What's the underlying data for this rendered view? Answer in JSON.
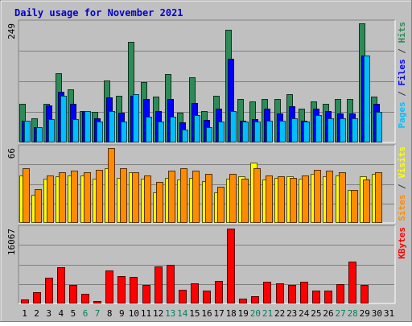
{
  "chart_data": {
    "type": "bar",
    "title": "Daily usage for November 2021",
    "x": [
      "1",
      "2",
      "3",
      "4",
      "5",
      "6",
      "7",
      "8",
      "9",
      "10",
      "11",
      "12",
      "13",
      "14",
      "15",
      "16",
      "17",
      "18",
      "19",
      "20",
      "21",
      "22",
      "23",
      "24",
      "25",
      "26",
      "27",
      "28",
      "29",
      "30",
      "31"
    ],
    "weekend_days": [
      "6",
      "7",
      "13",
      "14",
      "20",
      "21",
      "27",
      "28"
    ],
    "no_data_days": [
      "31"
    ],
    "panels": [
      {
        "id": "hits-files-pages",
        "ymax_label": "249",
        "ymax": 249,
        "side_labels": [
          {
            "text": "Pages",
            "color": "#00bfff"
          },
          {
            "text": " / ",
            "color": "#333333"
          },
          {
            "text": "Files",
            "color": "#0000ff"
          },
          {
            "text": " / ",
            "color": "#333333"
          },
          {
            "text": "Hits",
            "color": "#2e8b57"
          }
        ],
        "series": [
          {
            "name": "Hits",
            "color": "#2e8b57",
            "values": [
              81,
              51,
              81,
              145,
              111,
              66,
              64,
              130,
              98,
              211,
              126,
              96,
              143,
              62,
              137,
              66,
              98,
              235,
              91,
              86,
              91,
              91,
              101,
              71,
              86,
              81,
              91,
              91,
              249,
              96,
              0
            ]
          },
          {
            "name": "Files",
            "color": "#0000ff",
            "values": [
              46,
              32,
              78,
              106,
              81,
              66,
              51,
              94,
              63,
              98,
              91,
              66,
              91,
              42,
              83,
              47,
              71,
              175,
              46,
              49,
              71,
              61,
              76,
              46,
              71,
              66,
              61,
              61,
              181,
              81,
              0
            ]
          },
          {
            "name": "Pages",
            "color": "#00bfff",
            "values": [
              46,
              32,
              48,
              98,
              48,
              66,
              43,
              66,
              43,
              101,
              53,
              43,
              53,
              27,
              58,
              32,
              43,
              66,
              43,
              43,
              46,
              46,
              50,
              44,
              58,
              51,
              50,
              50,
              181,
              64,
              0
            ]
          }
        ]
      },
      {
        "id": "visits-sites",
        "ymax_label": "66",
        "ymax": 66,
        "side_labels": [
          {
            "text": "Sites",
            "color": "#ff8c00"
          },
          {
            "text": " / ",
            "color": "#333333"
          },
          {
            "text": "Visits",
            "color": "#ffff00"
          }
        ],
        "series": [
          {
            "name": "Visits",
            "color": "#ffff00",
            "values": [
              42,
              25,
              39,
              41,
              42,
              42,
              39,
              48,
              40,
              45,
              39,
              27,
              40,
              38,
              40,
              37,
              27,
              39,
              41,
              53,
              38,
              40,
              41,
              39,
              43,
              41,
              42,
              29,
              41,
              43,
              0
            ]
          },
          {
            "name": "Sites",
            "color": "#ff8c00",
            "values": [
              48,
              30,
              42,
              45,
              46,
              45,
              47,
              66,
              48,
              45,
              42,
              36,
              46,
              48,
              46,
              43,
              32,
              43,
              39,
              48,
              42,
              41,
              40,
              42,
              47,
              46,
              45,
              29,
              38,
              45,
              0
            ]
          }
        ]
      },
      {
        "id": "kbytes",
        "ymax_label": "16067",
        "ymax": 16067,
        "side_labels": [
          {
            "text": "KBytes",
            "color": "#ff0000"
          }
        ],
        "series": [
          {
            "name": "KBytes",
            "color": "#ff0000",
            "values": [
              900,
              2500,
              5600,
              7800,
              3900,
              2000,
              500,
              7000,
              5900,
              5700,
              3900,
              8000,
              8300,
              3000,
              4400,
              2800,
              4800,
              16067,
              1100,
              1500,
              4700,
              4400,
              3900,
              4700,
              2700,
              2800,
              4200,
              9000,
              3900,
              0,
              0
            ]
          }
        ]
      }
    ],
    "grid": true
  }
}
